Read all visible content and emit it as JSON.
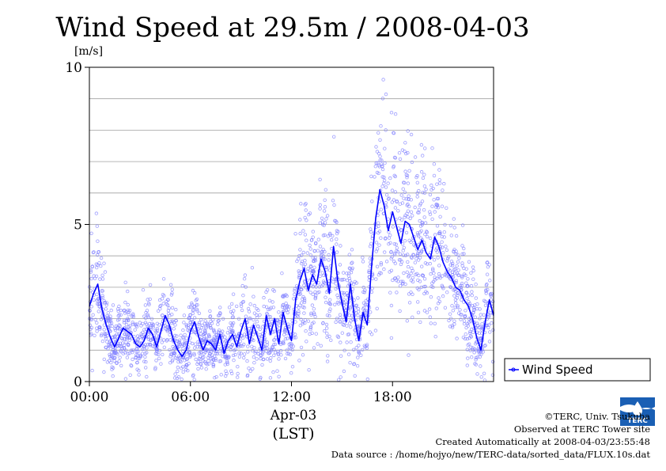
{
  "chart_data": {
    "type": "scatter",
    "title": "Wind Speed at 29.5m / 2008-04-03",
    "ylabel": "[m/s]",
    "xlabel": "Apr-03",
    "xlabel2": "(LST)",
    "ylim": [
      0,
      10
    ],
    "xlim": [
      0,
      24
    ],
    "y_ticks": [
      "0",
      "5",
      "10"
    ],
    "x_ticks": [
      "00:00",
      "06:00",
      "12:00",
      "18:00"
    ],
    "grid": true,
    "legend_position": "right",
    "series": [
      {
        "name": "Wind Speed",
        "color": "#0000ff",
        "x": [
          0.0,
          0.25,
          0.5,
          0.75,
          1.0,
          1.25,
          1.5,
          1.75,
          2.0,
          2.25,
          2.5,
          2.75,
          3.0,
          3.25,
          3.5,
          3.75,
          4.0,
          4.25,
          4.5,
          4.75,
          5.0,
          5.25,
          5.5,
          5.75,
          6.0,
          6.25,
          6.5,
          6.75,
          7.0,
          7.25,
          7.5,
          7.75,
          8.0,
          8.25,
          8.5,
          8.75,
          9.0,
          9.25,
          9.5,
          9.75,
          10.0,
          10.25,
          10.5,
          10.75,
          11.0,
          11.25,
          11.5,
          11.75,
          12.0,
          12.25,
          12.5,
          12.75,
          13.0,
          13.25,
          13.5,
          13.75,
          14.0,
          14.25,
          14.5,
          14.75,
          15.0,
          15.25,
          15.5,
          15.75,
          16.0,
          16.25,
          16.5,
          16.75,
          17.0,
          17.25,
          17.5,
          17.75,
          18.0,
          18.25,
          18.5,
          18.75,
          19.0,
          19.25,
          19.5,
          19.75,
          20.0,
          20.25,
          20.5,
          20.75,
          21.0,
          21.25,
          21.5,
          21.75,
          22.0,
          22.25,
          22.5,
          22.75,
          23.0,
          23.25,
          23.5,
          23.75,
          24.0
        ],
        "values": [
          2.4,
          2.8,
          3.1,
          2.3,
          1.8,
          1.4,
          1.1,
          1.4,
          1.7,
          1.6,
          1.5,
          1.2,
          1.1,
          1.3,
          1.7,
          1.5,
          1.1,
          1.6,
          2.1,
          1.8,
          1.3,
          1.0,
          0.8,
          1.0,
          1.6,
          1.9,
          1.4,
          1.0,
          1.3,
          1.2,
          1.0,
          1.5,
          0.9,
          1.3,
          1.5,
          1.1,
          1.6,
          2.0,
          1.2,
          1.8,
          1.4,
          1.0,
          2.1,
          1.5,
          2.0,
          1.2,
          2.2,
          1.7,
          1.3,
          2.6,
          3.2,
          3.6,
          2.9,
          3.4,
          3.1,
          3.9,
          3.5,
          2.8,
          4.3,
          3.2,
          2.5,
          1.9,
          3.1,
          2.0,
          1.3,
          2.2,
          1.8,
          3.6,
          5.2,
          6.1,
          5.6,
          4.8,
          5.4,
          4.9,
          4.4,
          5.1,
          5.0,
          4.6,
          4.2,
          4.5,
          4.1,
          3.9,
          4.6,
          4.3,
          3.8,
          3.5,
          3.3,
          3.0,
          2.9,
          2.6,
          2.4,
          2.0,
          1.4,
          1.0,
          1.9,
          2.6,
          2.1
        ]
      }
    ]
  },
  "legend": {
    "label": "Wind Speed"
  },
  "credits": {
    "line1": "©TERC, Univ. Tsukuba",
    "line2": "Observed at TERC Tower site",
    "line3": "Created Automatically at 2008-04-03/23:55:48",
    "line4": "Data source : /home/hojyo/new/TERC-data/sorted_data/FLUX.10s.dat"
  },
  "logo": {
    "text": "TERC",
    "color": "#1a5fb4"
  }
}
